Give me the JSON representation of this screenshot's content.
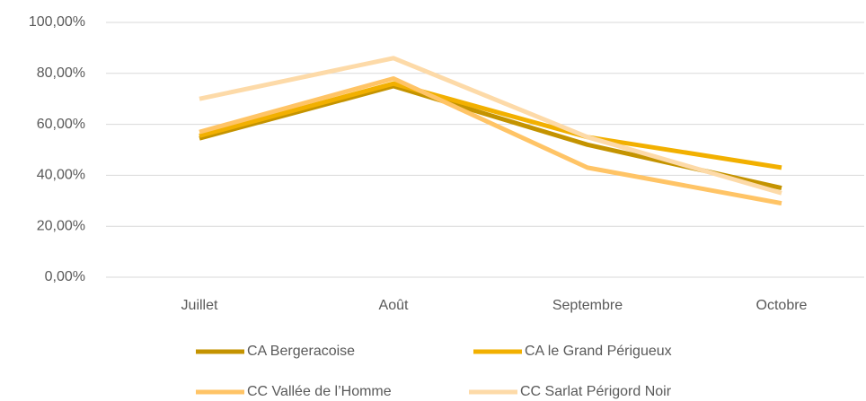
{
  "chart_data": {
    "type": "line",
    "categories": [
      "Juillet",
      "Août",
      "Septembre",
      "Octobre"
    ],
    "series": [
      {
        "name": "CA Bergeracoise",
        "color": "#c49300",
        "values": [
          54.5,
          75,
          52,
          35
        ]
      },
      {
        "name": "CA le Grand Périgueux",
        "color": "#f2b000",
        "values": [
          55.5,
          76,
          55,
          43
        ]
      },
      {
        "name": "CC Vallée de l’Homme",
        "color": "#ffc466",
        "values": [
          57,
          78,
          43,
          29
        ]
      },
      {
        "name": "CC Sarlat Périgord Noir",
        "color": "#fddaa8",
        "values": [
          70,
          86,
          55,
          33
        ]
      }
    ],
    "ylim": [
      0,
      100
    ],
    "yticks": [
      {
        "value": 0,
        "label": "0,00%"
      },
      {
        "value": 20,
        "label": "20,00%"
      },
      {
        "value": 40,
        "label": "40,00%"
      },
      {
        "value": 60,
        "label": "60,00%"
      },
      {
        "value": 80,
        "label": "80,00%"
      },
      {
        "value": 100,
        "label": "100,00%"
      }
    ],
    "grid": true
  }
}
